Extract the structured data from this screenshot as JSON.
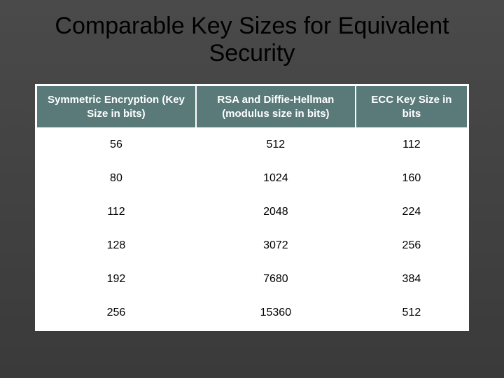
{
  "title": "Comparable Key Sizes for Equivalent Security",
  "table": {
    "type": "table",
    "background_color": "#ffffff",
    "header_bg": "#5a7a7a",
    "header_text_color": "#ffffff",
    "cell_text_color": "#000000",
    "border_color": "#ffffff",
    "row_divider_color": "#d0d0d0",
    "header_fontsize": 15,
    "cell_fontsize": 16,
    "columns": [
      {
        "label": "Symmetric Encryption (Key Size in bits)",
        "width_pct": 37
      },
      {
        "label": "RSA and Diffie-Hellman (modulus size in bits)",
        "width_pct": 37
      },
      {
        "label": "ECC Key Size in bits",
        "width_pct": 26
      }
    ],
    "rows": [
      [
        "56",
        "512",
        "112"
      ],
      [
        "80",
        "1024",
        "160"
      ],
      [
        "112",
        "2048",
        "224"
      ],
      [
        "128",
        "3072",
        "256"
      ],
      [
        "192",
        "7680",
        "384"
      ],
      [
        "256",
        "15360",
        "512"
      ]
    ]
  },
  "slide_bg_top": "#4a4a4a",
  "slide_bg_bottom": "#3a3a3a",
  "title_color": "#000000",
  "title_fontsize": 34
}
